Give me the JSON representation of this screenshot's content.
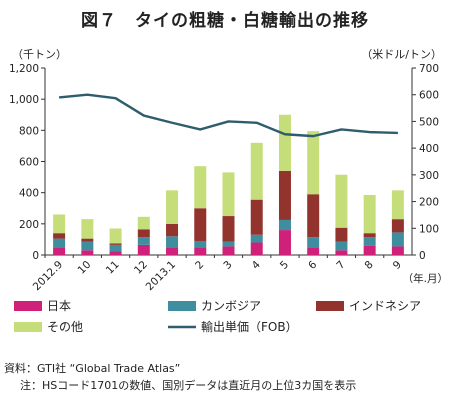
{
  "title": "図７　タイの粗糖・白糖輸出の推移",
  "left_unit": "（千トン）",
  "right_unit": "（米ドル/トン）",
  "x_unit": "（年.月）",
  "source": "資料：GTI社 “Global Trade Atlas”",
  "note": "注：HSコード1701の数値、国別データは直近月の上位3カ国を表示",
  "colors": {
    "japan": "#d0217a",
    "cambodia": "#3e8ea0",
    "indonesia": "#93332e",
    "other": "#c5de7a",
    "line": "#2f5d6e"
  },
  "chart_data": {
    "type": "bar",
    "stacked": true,
    "categories": [
      "2012.9",
      "10",
      "11",
      "12",
      "2013.1",
      "2",
      "3",
      "4",
      "5",
      "6",
      "7",
      "8",
      "9"
    ],
    "series": [
      {
        "name": "日本",
        "values": [
          50,
          30,
          25,
          65,
          50,
          50,
          55,
          80,
          160,
          50,
          30,
          60,
          55
        ]
      },
      {
        "name": "カンボジア",
        "values": [
          55,
          55,
          40,
          50,
          70,
          40,
          30,
          50,
          65,
          65,
          55,
          55,
          90
        ]
      },
      {
        "name": "インドネシア",
        "values": [
          35,
          20,
          10,
          50,
          80,
          210,
          165,
          225,
          315,
          275,
          90,
          25,
          85
        ]
      },
      {
        "name": "その他",
        "values": [
          120,
          125,
          95,
          80,
          215,
          270,
          280,
          365,
          360,
          405,
          340,
          245,
          185
        ]
      }
    ],
    "line": {
      "name": "輸出単価（FOB）",
      "axis": "right",
      "values": [
        590,
        600,
        587,
        522,
        495,
        470,
        500,
        495,
        452,
        445,
        470,
        460,
        457
      ]
    },
    "y_left": {
      "min": 0,
      "max": 1200,
      "ticks": [
        0,
        200,
        400,
        600,
        800,
        1000,
        1200
      ],
      "labels": [
        "0",
        "200",
        "400",
        "600",
        "800",
        "1,000",
        "1,200"
      ]
    },
    "y_right": {
      "min": 0,
      "max": 700,
      "ticks": [
        0,
        100,
        200,
        300,
        400,
        500,
        600,
        700
      ],
      "labels": [
        "0",
        "100",
        "200",
        "300",
        "400",
        "500",
        "600",
        "700"
      ]
    },
    "legend_placement": "bottom",
    "grid": false
  }
}
